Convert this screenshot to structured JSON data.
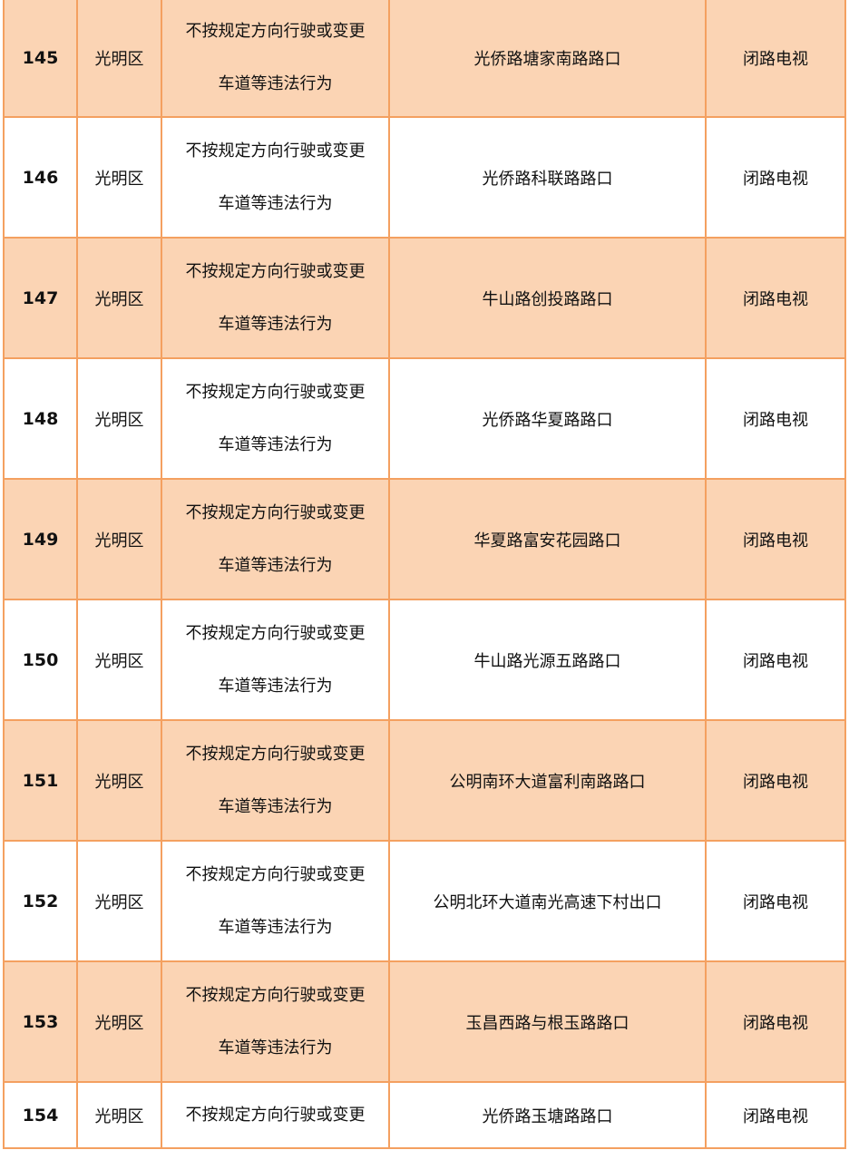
{
  "colors": {
    "row_shade": "#fbd4b4",
    "border": "#f4a060"
  },
  "rows": [
    {
      "no": "145",
      "district": "光明区",
      "violation": [
        "不按规定方向行驶或变更",
        "车道等违法行为"
      ],
      "location": "光侨路塘家南路路口",
      "method": "闭路电视"
    },
    {
      "no": "146",
      "district": "光明区",
      "violation": [
        "不按规定方向行驶或变更",
        "车道等违法行为"
      ],
      "location": "光侨路科联路路口",
      "method": "闭路电视"
    },
    {
      "no": "147",
      "district": "光明区",
      "violation": [
        "不按规定方向行驶或变更",
        "车道等违法行为"
      ],
      "location": "牛山路创投路路口",
      "method": "闭路电视"
    },
    {
      "no": "148",
      "district": "光明区",
      "violation": [
        "不按规定方向行驶或变更",
        "车道等违法行为"
      ],
      "location": "光侨路华夏路路口",
      "method": "闭路电视"
    },
    {
      "no": "149",
      "district": "光明区",
      "violation": [
        "不按规定方向行驶或变更",
        "车道等违法行为"
      ],
      "location": "华夏路富安花园路口",
      "method": "闭路电视"
    },
    {
      "no": "150",
      "district": "光明区",
      "violation": [
        "不按规定方向行驶或变更",
        "车道等违法行为"
      ],
      "location": "牛山路光源五路路口",
      "method": "闭路电视"
    },
    {
      "no": "151",
      "district": "光明区",
      "violation": [
        "不按规定方向行驶或变更",
        "车道等违法行为"
      ],
      "location": "公明南环大道富利南路路口",
      "method": "闭路电视"
    },
    {
      "no": "152",
      "district": "光明区",
      "violation": [
        "不按规定方向行驶或变更",
        "车道等违法行为"
      ],
      "location": "公明北环大道南光高速下村出口",
      "method": "闭路电视"
    },
    {
      "no": "153",
      "district": "光明区",
      "violation": [
        "不按规定方向行驶或变更",
        "车道等违法行为"
      ],
      "location": "玉昌西路与根玉路路口",
      "method": "闭路电视"
    },
    {
      "no": "154",
      "district": "光明区",
      "violation": [
        "不按规定方向行驶或变更"
      ],
      "location": "光侨路玉塘路路口",
      "method": "闭路电视"
    }
  ]
}
